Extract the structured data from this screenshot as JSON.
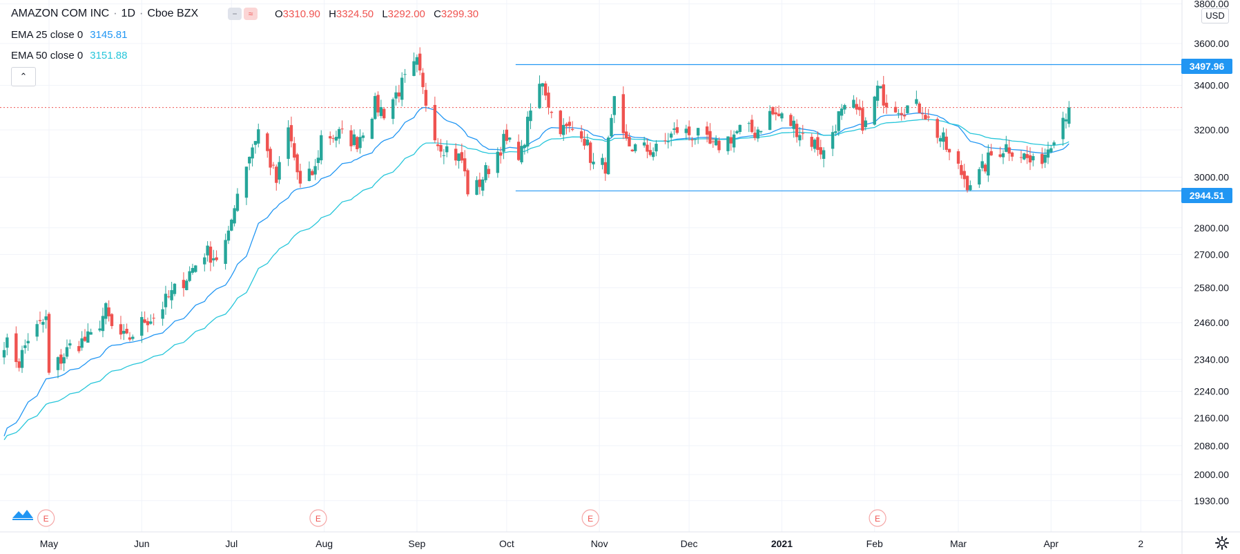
{
  "header": {
    "symbol": "AMAZON COM INC",
    "interval": "1D",
    "exchange": "Cboe BZX",
    "ohlc": {
      "o_label": "O",
      "o": "3310.90",
      "h_label": "H",
      "h": "3324.50",
      "l_label": "L",
      "l": "3292.00",
      "c_label": "C",
      "c": "3299.30"
    }
  },
  "indicators": [
    {
      "label": "EMA 25 close 0",
      "value": "3145.81",
      "color": "#2196f3"
    },
    {
      "label": "EMA 50 close 0",
      "value": "3151.88",
      "color": "#26c6da"
    }
  ],
  "currency": "USD",
  "levels": {
    "resistance": "3497.96",
    "support": "2944.51",
    "line_color": "#2196f3"
  },
  "last_price": 3299.3,
  "earnings_marker": "E",
  "colors": {
    "up": "#26a69a",
    "down": "#ef5350",
    "ema25": "#2196f3",
    "ema50": "#26c6da",
    "grid": "#f0f3fa",
    "text": "#131722"
  },
  "chart_data": {
    "type": "candlestick",
    "scale": "log",
    "x_ticks": [
      "May",
      "Jun",
      "Jul",
      "Aug",
      "Sep",
      "Oct",
      "Nov",
      "Dec",
      "2021",
      "Feb",
      "Mar",
      "Apr",
      "2"
    ],
    "y_ticks": [
      "3800.00",
      "3600.00",
      "3400.00",
      "3200.00",
      "3000.00",
      "2800.00",
      "2700.00",
      "2580.00",
      "2460.00",
      "2340.00",
      "2240.00",
      "2160.00",
      "2080.00",
      "2000.00",
      "1930.00"
    ],
    "ylim": [
      1890,
      3820
    ],
    "horizontal_lines": [
      3497.96,
      2944.51
    ],
    "earnings_events": [
      "2020-04-30",
      "2020-07-30",
      "2020-10-29",
      "2021-02-02"
    ],
    "series": [
      {
        "name": "EMA 25 close 0",
        "last": 3145.81
      },
      {
        "name": "EMA 50 close 0",
        "last": 3151.88
      }
    ],
    "anchors": [
      [
        "2020-04-16",
        2400
      ],
      [
        "2020-04-21",
        2330
      ],
      [
        "2020-04-24",
        2410
      ],
      [
        "2020-04-30",
        2470
      ],
      [
        "2020-05-01",
        2290
      ],
      [
        "2020-05-08",
        2380
      ],
      [
        "2020-05-15",
        2410
      ],
      [
        "2020-05-20",
        2500
      ],
      [
        "2020-05-22",
        2440
      ],
      [
        "2020-05-27",
        2400
      ],
      [
        "2020-06-02",
        2470
      ],
      [
        "2020-06-05",
        2480
      ],
      [
        "2020-06-12",
        2570
      ],
      [
        "2020-06-16",
        2620
      ],
      [
        "2020-06-22",
        2710
      ],
      [
        "2020-06-26",
        2690
      ],
      [
        "2020-06-30",
        2760
      ],
      [
        "2020-07-02",
        2900
      ],
      [
        "2020-07-06",
        3060
      ],
      [
        "2020-07-10",
        3200
      ],
      [
        "2020-07-13",
        3100
      ],
      [
        "2020-07-16",
        2980
      ],
      [
        "2020-07-20",
        3200
      ],
      [
        "2020-07-24",
        2960
      ],
      [
        "2020-07-29",
        3030
      ],
      [
        "2020-07-31",
        3170
      ],
      [
        "2020-08-06",
        3180
      ],
      [
        "2020-08-12",
        3150
      ],
      [
        "2020-08-18",
        3310
      ],
      [
        "2020-08-21",
        3280
      ],
      [
        "2020-08-27",
        3400
      ],
      [
        "2020-09-01",
        3500
      ],
      [
        "2020-09-03",
        3370
      ],
      [
        "2020-09-08",
        3150
      ],
      [
        "2020-09-11",
        3120
      ],
      [
        "2020-09-16",
        3070
      ],
      [
        "2020-09-18",
        2950
      ],
      [
        "2020-09-21",
        2960
      ],
      [
        "2020-09-24",
        3020
      ],
      [
        "2020-09-30",
        3150
      ],
      [
        "2020-10-06",
        3100
      ],
      [
        "2020-10-09",
        3280
      ],
      [
        "2020-10-13",
        3430
      ],
      [
        "2020-10-16",
        3270
      ],
      [
        "2020-10-20",
        3200
      ],
      [
        "2020-10-26",
        3200
      ],
      [
        "2020-10-30",
        3050
      ],
      [
        "2020-11-03",
        3050
      ],
      [
        "2020-11-06",
        3310
      ],
      [
        "2020-11-09",
        3150
      ],
      [
        "2020-11-13",
        3120
      ],
      [
        "2020-11-20",
        3110
      ],
      [
        "2020-11-27",
        3200
      ],
      [
        "2020-12-04",
        3170
      ],
      [
        "2020-12-09",
        3120
      ],
      [
        "2020-12-14",
        3160
      ],
      [
        "2020-12-18",
        3200
      ],
      [
        "2020-12-23",
        3190
      ],
      [
        "2020-12-28",
        3270
      ],
      [
        "2020-12-31",
        3260
      ],
      [
        "2021-01-05",
        3220
      ],
      [
        "2021-01-08",
        3180
      ],
      [
        "2021-01-13",
        3130
      ],
      [
        "2021-01-15",
        3100
      ],
      [
        "2021-01-20",
        3260
      ],
      [
        "2021-01-25",
        3300
      ],
      [
        "2021-01-27",
        3250
      ],
      [
        "2021-01-29",
        3220
      ],
      [
        "2021-02-02",
        3380
      ],
      [
        "2021-02-05",
        3330
      ],
      [
        "2021-02-10",
        3300
      ],
      [
        "2021-02-17",
        3300
      ],
      [
        "2021-02-19",
        3240
      ],
      [
        "2021-02-24",
        3150
      ],
      [
        "2021-02-26",
        3090
      ],
      [
        "2021-03-04",
        2980
      ],
      [
        "2021-03-08",
        3010
      ],
      [
        "2021-03-12",
        3090
      ],
      [
        "2021-03-17",
        3130
      ],
      [
        "2021-03-22",
        3100
      ],
      [
        "2021-03-26",
        3050
      ],
      [
        "2021-03-30",
        3100
      ],
      [
        "2021-04-01",
        3160
      ],
      [
        "2021-04-05",
        3260
      ],
      [
        "2021-04-07",
        3299.3
      ]
    ]
  }
}
